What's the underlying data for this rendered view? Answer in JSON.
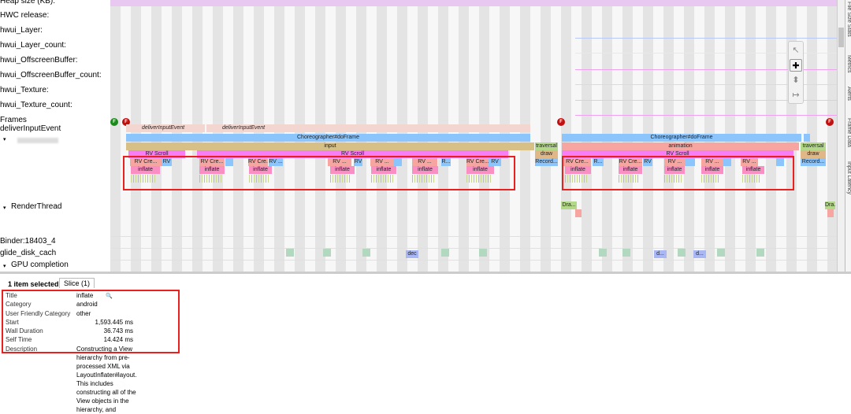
{
  "tracks": {
    "labels": [
      "Heap size (KB):",
      "HWC release:",
      "hwui_Layer:",
      "hwui_Layer_count:",
      "hwui_OffscreenBuffer:",
      "hwui_OffscreenBuffer_count:",
      "hwui_Texture:",
      "hwui_Texture_count:",
      "Frames",
      "deliverInputEvent",
      "",
      "RenderThread",
      "Binder:18403_4",
      "glide_disk_cach",
      "GPU completion"
    ]
  },
  "frame_marks": [
    "F",
    "F",
    "F",
    "F"
  ],
  "slice_labels": {
    "deliver": "deliverInputEvent",
    "doframe": "Choreographer#doFrame",
    "input": "input",
    "animation": "animation",
    "traversal": "traversal",
    "rvscroll": "RV Scroll",
    "draw": "draw",
    "rvcre": "RV Cre...",
    "rvshort": "RV ...",
    "rv": "RV",
    "r": "R...",
    "inflate": "inflate",
    "record": "Record...",
    "dra": "Dra...",
    "dec": "dec",
    "d": "d..."
  },
  "side_tabs": [
    "File Size Stats",
    "Metrics",
    "Alerts",
    "Frame Data",
    "Input Latency"
  ],
  "tools": [
    "pointer-icon",
    "pan-icon",
    "zoom-icon",
    "timing-icon"
  ],
  "panel": {
    "selected": "1 item selected.",
    "tab": "Slice (1)",
    "rows": [
      {
        "k": "Title",
        "v": "inflate"
      },
      {
        "k": "Category",
        "v": "android"
      },
      {
        "k": "User Friendly Category",
        "v": "other"
      },
      {
        "k": "Start",
        "v": "1,593.445 ms"
      },
      {
        "k": "Wall Duration",
        "v": "36.743 ms"
      },
      {
        "k": "Self Time",
        "v": "14.424 ms"
      },
      {
        "k": "Description",
        "v": ""
      }
    ],
    "description": "Constructing a View hierarchy from pre-processed XML via LayoutInflater#layout. This includes constructing all of the View objects in the hierarchy, and"
  },
  "colors": {
    "deliver": "#f3d6d0",
    "doframe": "#8cc5fb",
    "input": "#d7c086",
    "animation": "#f7a5a0",
    "traversal": "#b3d88a",
    "rvscroll": "#f77ef5",
    "draw": "#e0b888",
    "rvcre": "#f7a5a0",
    "rv": "#8cc5fb",
    "inflate": "#f98fc3",
    "ticks": "#a8d080",
    "highlight": "#e82020"
  }
}
